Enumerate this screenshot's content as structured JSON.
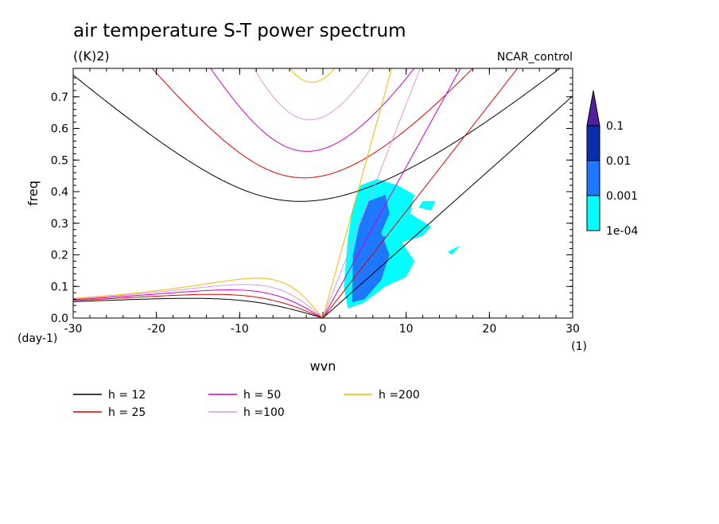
{
  "chart_data": {
    "type": "line",
    "title": "air temperature S-T power spectrum",
    "subtitle": "((K)2)",
    "source_label": "NCAR_control",
    "xlabel": "wvn",
    "ylabel": "freq",
    "x_unit": "(1)",
    "y_unit": "(day-1)",
    "xlim": [
      -30,
      30
    ],
    "ylim": [
      0,
      0.79
    ],
    "x_ticks": [
      -30,
      -20,
      -10,
      0,
      10,
      20,
      30
    ],
    "y_ticks": [
      0.0,
      0.1,
      0.2,
      0.3,
      0.4,
      0.5,
      0.6,
      0.7
    ],
    "x_tick_labels": [
      "-30",
      "-20",
      "-10",
      "0",
      "10",
      "20",
      "30"
    ],
    "y_tick_labels": [
      "0.0",
      "0.1",
      "0.2",
      "0.3",
      "0.4",
      "0.5",
      "0.6",
      "0.7"
    ],
    "grid": false,
    "series": [
      {
        "name": "h = 12",
        "h": 12,
        "color": "#000000"
      },
      {
        "name": "h = 25",
        "h": 25,
        "color": "#e00000"
      },
      {
        "name": "h = 50",
        "h": 50,
        "color": "#cc00cc"
      },
      {
        "name": "h =100",
        "h": 100,
        "color": "#dd99dd"
      },
      {
        "name": "h =200",
        "h": 200,
        "color": "#eebb00"
      }
    ],
    "colorbar": {
      "labels": [
        "0.1",
        "0.01",
        "0.001",
        "1e-04"
      ],
      "colors": [
        "#5020a0",
        "#0a2db0",
        "#1e78ff",
        "#00ffff"
      ]
    },
    "shaded_regions": [
      {
        "level": "1e-04",
        "color": "#00ffff",
        "points": [
          [
            2.5,
            0.1
          ],
          [
            3,
            0.25
          ],
          [
            3.5,
            0.34
          ],
          [
            4.5,
            0.42
          ],
          [
            6.5,
            0.44
          ],
          [
            9,
            0.42
          ],
          [
            11,
            0.39
          ],
          [
            10.5,
            0.33
          ],
          [
            13,
            0.29
          ],
          [
            12,
            0.26
          ],
          [
            9.5,
            0.24
          ],
          [
            11,
            0.18
          ],
          [
            10,
            0.13
          ],
          [
            7.5,
            0.1
          ],
          [
            5,
            0.05
          ],
          [
            3,
            0.03
          ]
        ]
      },
      {
        "level": "1e-04",
        "color": "#00ffff",
        "points": [
          [
            15,
            0.21
          ],
          [
            16.5,
            0.23
          ],
          [
            15.5,
            0.2
          ]
        ]
      },
      {
        "level": "1e-04",
        "color": "#00ffff",
        "points": [
          [
            12,
            0.37
          ],
          [
            13.5,
            0.37
          ],
          [
            13,
            0.34
          ],
          [
            11.5,
            0.35
          ]
        ]
      },
      {
        "level": "0.001",
        "color": "#1e78ff",
        "points": [
          [
            3.5,
            0.05
          ],
          [
            3.6,
            0.2
          ],
          [
            4.5,
            0.31
          ],
          [
            5.5,
            0.37
          ],
          [
            7.5,
            0.39
          ],
          [
            8,
            0.33
          ],
          [
            7,
            0.27
          ],
          [
            8,
            0.2
          ],
          [
            7,
            0.12
          ],
          [
            5,
            0.06
          ]
        ]
      },
      {
        "level": "0.001",
        "color": "#1e78ff",
        "points": [
          [
            5.5,
            0.25
          ],
          [
            7.5,
            0.26
          ],
          [
            7,
            0.22
          ],
          [
            5.8,
            0.23
          ]
        ]
      }
    ]
  },
  "legend": {
    "items": [
      {
        "label": "h = 12",
        "color": "#000000"
      },
      {
        "label": "h = 25",
        "color": "#e00000"
      },
      {
        "label": "h = 50",
        "color": "#cc00cc"
      },
      {
        "label": "h =100",
        "color": "#dd99dd"
      },
      {
        "label": "h =200",
        "color": "#eebb00"
      }
    ]
  }
}
